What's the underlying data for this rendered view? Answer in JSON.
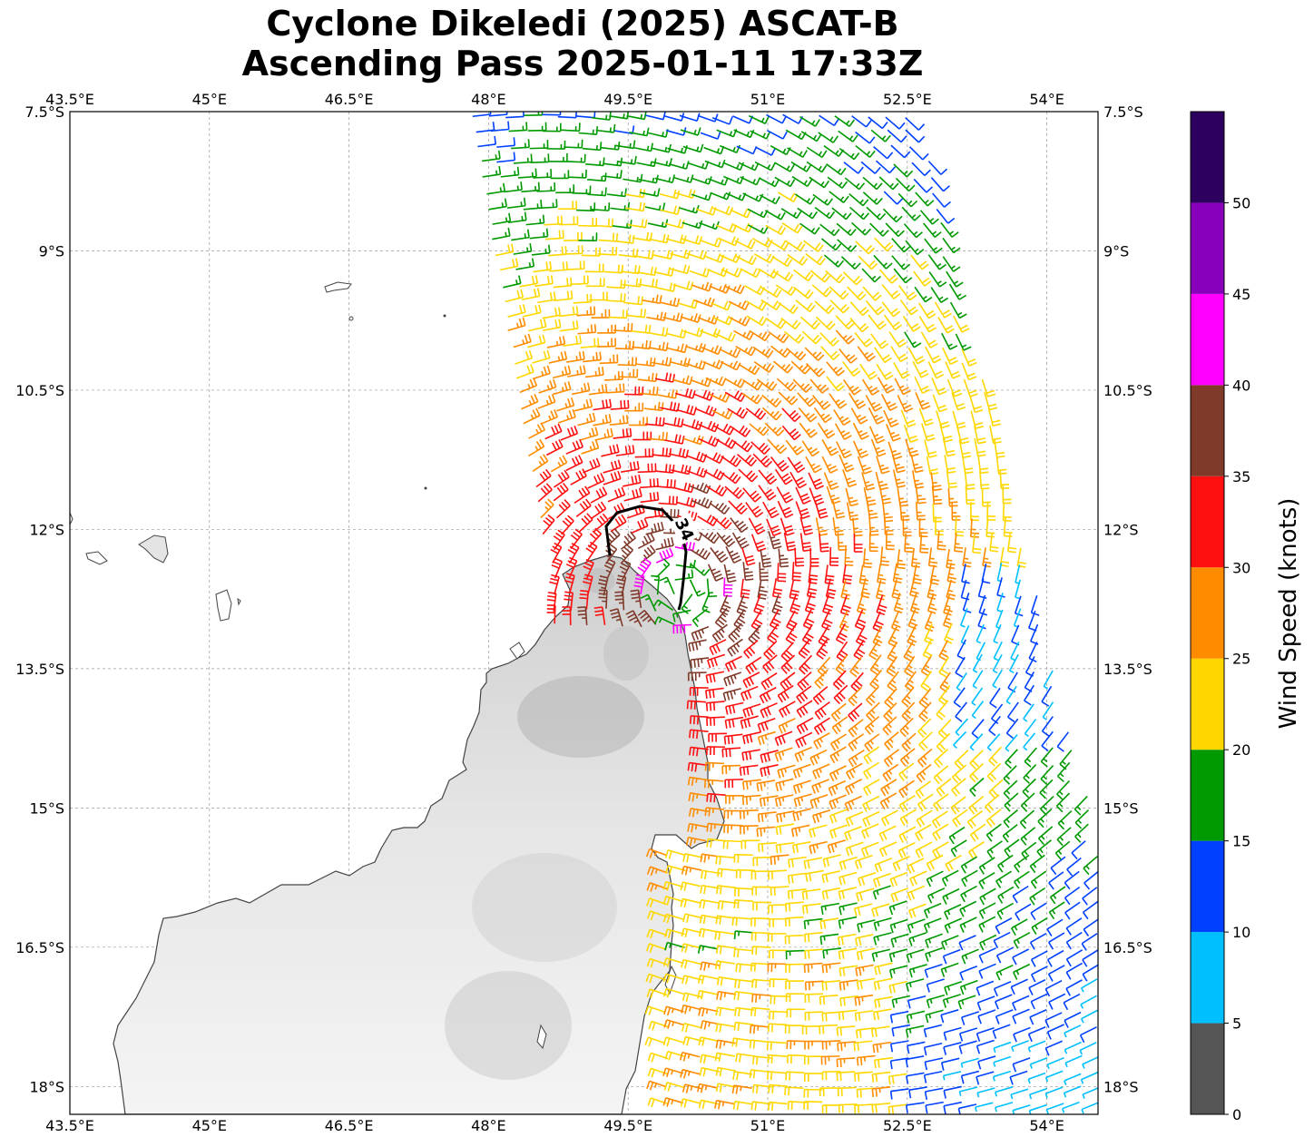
{
  "title": {
    "line1": "Cyclone Dikeledi (2025) ASCAT-B",
    "line2": "Ascending Pass 2025-01-11 17:33Z"
  },
  "map": {
    "lon_range": [
      43.5,
      54.55
    ],
    "lat_range": [
      -18.3,
      -7.5
    ],
    "lon_ticks": [
      43.5,
      45,
      46.5,
      48,
      49.5,
      51,
      52.5,
      54
    ],
    "lon_tick_labels": [
      "43.5°E",
      "45°E",
      "46.5°E",
      "48°E",
      "49.5°E",
      "51°E",
      "52.5°E",
      "54°E"
    ],
    "lat_ticks": [
      -7.5,
      -9,
      -10.5,
      -12,
      -13.5,
      -15,
      -16.5,
      -18
    ],
    "lat_tick_labels": [
      "7.5°S",
      "9°S",
      "10.5°S",
      "12°S",
      "13.5°S",
      "15°S",
      "16.5°S",
      "18°S"
    ],
    "gridlines": true,
    "contour": {
      "level_label": "34",
      "color": "#000000"
    },
    "storm_center": {
      "lon": 50.05,
      "lat": -12.65
    }
  },
  "colorbar": {
    "title": "Wind Speed (knots)",
    "tick_labels": [
      "0",
      "5",
      "10",
      "15",
      "20",
      "25",
      "30",
      "35",
      "40",
      "45",
      "50"
    ],
    "colors": [
      "#555555",
      "#00bfff",
      "#0040ff",
      "#009900",
      "#ffd700",
      "#ff8c00",
      "#ff1010",
      "#7f3a2a",
      "#ff00ff",
      "#8800bb",
      "#2d0060"
    ],
    "bounds": [
      0,
      5,
      10,
      15,
      20,
      25,
      30,
      35,
      40,
      45,
      50,
      55
    ]
  }
}
